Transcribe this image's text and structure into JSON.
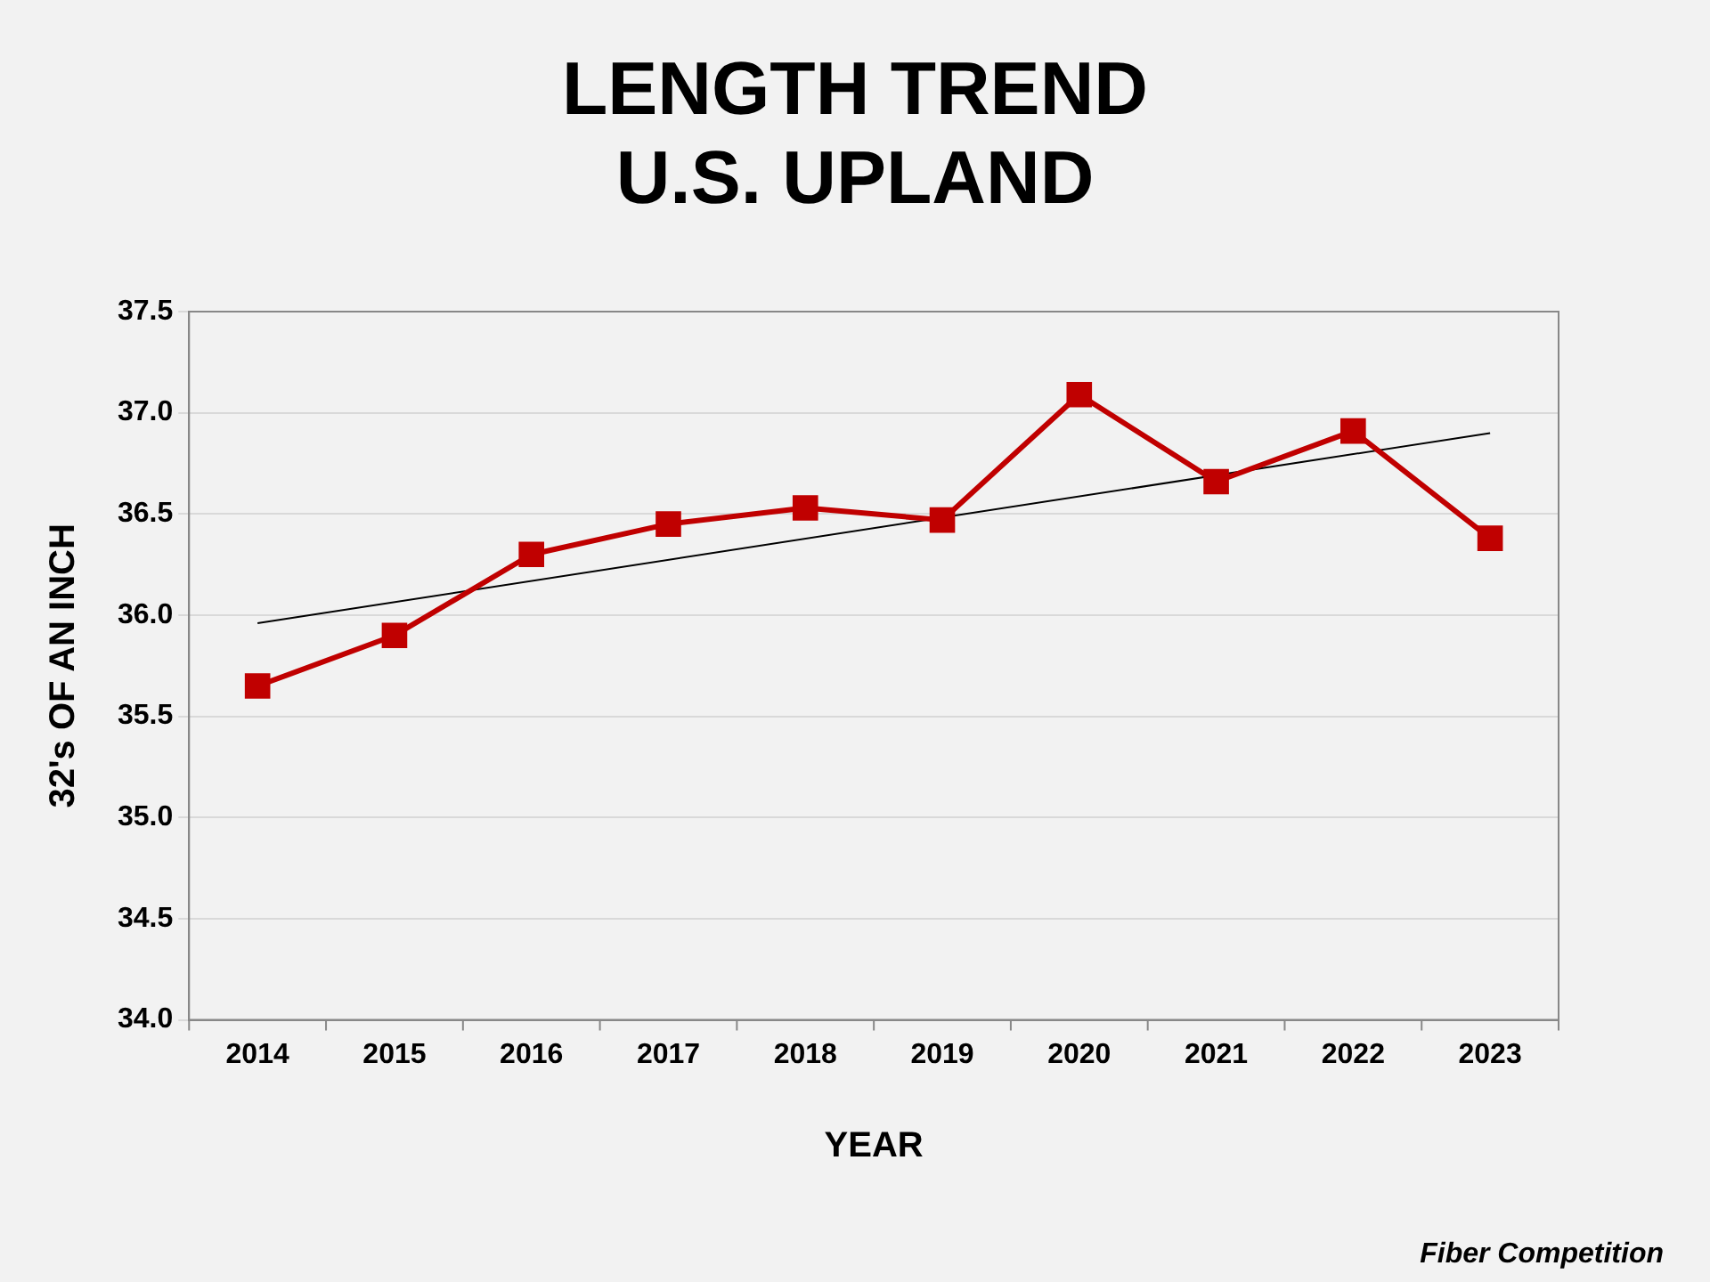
{
  "chart_data": {
    "type": "line",
    "title": "LENGTH TREND\nU.S. UPLAND",
    "xlabel": "YEAR",
    "ylabel": "32's OF AN INCH",
    "categories": [
      "2014",
      "2015",
      "2016",
      "2017",
      "2018",
      "2019",
      "2020",
      "2021",
      "2022",
      "2023"
    ],
    "series": [
      {
        "color": "#c00000",
        "marker": "square",
        "values": [
          35.65,
          35.9,
          36.3,
          36.45,
          36.53,
          36.47,
          37.09,
          36.66,
          36.91,
          36.38
        ]
      },
      {
        "type": "line",
        "color": "#000000",
        "marker": "none",
        "values": [
          35.96,
          null,
          null,
          null,
          null,
          null,
          null,
          null,
          null,
          36.9
        ]
      }
    ],
    "ylim": [
      34.0,
      37.5
    ],
    "yticks": [
      {
        "value": 34,
        "label": "34.0"
      },
      {
        "value": 34.5,
        "label": "34.5"
      },
      {
        "value": 35,
        "label": "35.0"
      },
      {
        "value": 35.5,
        "label": "35.5"
      },
      {
        "value": 36,
        "label": "36.0"
      },
      {
        "value": 36.5,
        "label": "36.5"
      },
      {
        "value": 37,
        "label": "37.0"
      },
      {
        "value": 37.5,
        "label": "37.5"
      }
    ],
    "grid": "y",
    "legend": false,
    "annotations": [
      "Fiber Competition"
    ]
  }
}
